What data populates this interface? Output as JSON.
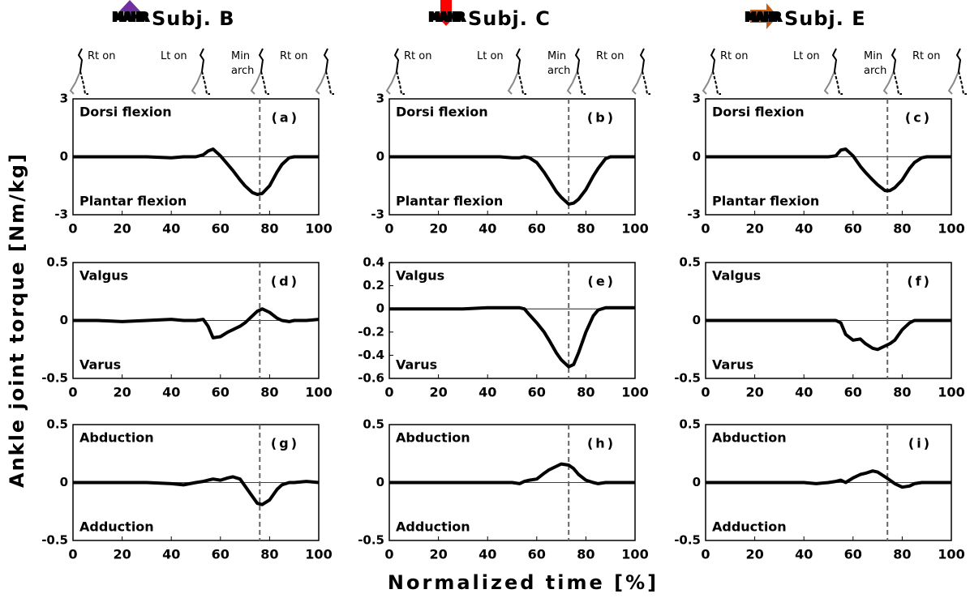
{
  "figure": {
    "ylabel": "Ankle joint torque [Nm/kg]",
    "xlabel": "Normalized time [%]"
  },
  "columns": [
    {
      "icon_text": "MAHR",
      "icon_color": "#7030a0",
      "title": "Subj. B",
      "events": [
        "Rt on",
        "Lt on",
        "Min arch",
        "Rt on"
      ]
    },
    {
      "icon_text": "MAHR",
      "icon_color": "#ff0000",
      "title": "Subj. C",
      "events": [
        "Rt on",
        "Lt on",
        "Min arch",
        "Rt on"
      ]
    },
    {
      "icon_text": "MAHR",
      "icon_color": "#c55a11",
      "title": "Subj. E",
      "events": [
        "Rt on",
        "Lt on",
        "Min arch",
        "Rt on"
      ]
    }
  ],
  "chart_data": [
    {
      "type": "line",
      "panel_label": "(a)",
      "upper_label": "Dorsi flexion",
      "lower_label": "Plantar flexion",
      "xlim": [
        0,
        100
      ],
      "xticks": [
        0,
        20,
        40,
        60,
        80,
        100
      ],
      "ylim": [
        -3,
        3
      ],
      "yticks": [
        -3,
        0,
        3
      ],
      "event_line": 76,
      "color": "#000000",
      "x": [
        0,
        10,
        20,
        30,
        40,
        45,
        50,
        53,
        55,
        57,
        60,
        63,
        65,
        68,
        70,
        73,
        75,
        77,
        80,
        83,
        85,
        88,
        90,
        95,
        100
      ],
      "values": [
        0,
        0,
        0,
        0,
        -0.05,
        0,
        0,
        0.1,
        0.3,
        0.4,
        0.05,
        -0.4,
        -0.7,
        -1.2,
        -1.5,
        -1.85,
        -1.95,
        -1.9,
        -1.5,
        -0.8,
        -0.4,
        -0.05,
        0,
        0,
        0
      ]
    },
    {
      "type": "line",
      "panel_label": "(b)",
      "upper_label": "Dorsi flexion",
      "lower_label": "Plantar flexion",
      "xlim": [
        0,
        100
      ],
      "xticks": [
        0,
        20,
        40,
        60,
        80,
        100
      ],
      "ylim": [
        -3,
        3
      ],
      "yticks": [
        -3,
        0,
        3
      ],
      "event_line": 73,
      "color": "#000000",
      "x": [
        0,
        10,
        20,
        30,
        40,
        45,
        50,
        53,
        55,
        57,
        60,
        63,
        65,
        68,
        70,
        73,
        75,
        77,
        80,
        83,
        85,
        88,
        90,
        95,
        100
      ],
      "values": [
        0,
        0,
        0,
        0,
        0,
        0,
        -0.05,
        -0.05,
        0,
        -0.05,
        -0.3,
        -0.8,
        -1.2,
        -1.8,
        -2.1,
        -2.45,
        -2.4,
        -2.2,
        -1.7,
        -1.0,
        -0.6,
        -0.1,
        0,
        0,
        0
      ]
    },
    {
      "type": "line",
      "panel_label": "(c)",
      "upper_label": "Dorsi flexion",
      "lower_label": "Plantar flexion",
      "xlim": [
        0,
        100
      ],
      "xticks": [
        0,
        20,
        40,
        60,
        80,
        100
      ],
      "ylim": [
        -3,
        3
      ],
      "yticks": [
        -3,
        0,
        3
      ],
      "event_line": 74,
      "color": "#000000",
      "x": [
        0,
        10,
        20,
        30,
        40,
        45,
        50,
        53,
        55,
        57,
        60,
        63,
        65,
        68,
        70,
        73,
        75,
        77,
        80,
        83,
        85,
        88,
        90,
        95,
        100
      ],
      "values": [
        0,
        0,
        0,
        0,
        0,
        0,
        0,
        0.05,
        0.35,
        0.4,
        0.05,
        -0.5,
        -0.8,
        -1.2,
        -1.45,
        -1.75,
        -1.75,
        -1.6,
        -1.2,
        -0.6,
        -0.3,
        -0.05,
        0,
        0,
        0
      ]
    },
    {
      "type": "line",
      "panel_label": "(d)",
      "upper_label": "Valgus",
      "lower_label": "Varus",
      "xlim": [
        0,
        100
      ],
      "xticks": [
        0,
        20,
        40,
        60,
        80,
        100
      ],
      "ylim": [
        -0.5,
        0.5
      ],
      "yticks": [
        -0.5,
        0,
        0.5
      ],
      "event_line": 76,
      "color": "#000000",
      "x": [
        0,
        10,
        20,
        30,
        40,
        45,
        50,
        53,
        55,
        57,
        60,
        63,
        65,
        68,
        70,
        73,
        75,
        77,
        80,
        83,
        85,
        88,
        90,
        95,
        100
      ],
      "values": [
        0,
        0,
        -0.01,
        0,
        0.01,
        0,
        0,
        0.01,
        -0.05,
        -0.15,
        -0.14,
        -0.1,
        -0.08,
        -0.05,
        -0.02,
        0.04,
        0.08,
        0.1,
        0.07,
        0.02,
        0,
        -0.01,
        0,
        0,
        0.01
      ]
    },
    {
      "type": "line",
      "panel_label": "(e)",
      "upper_label": "Valgus",
      "lower_label": "Varus",
      "xlim": [
        0,
        100
      ],
      "xticks": [
        0,
        20,
        40,
        60,
        80,
        100
      ],
      "ylim": [
        -0.6,
        0.4
      ],
      "yticks": [
        -0.6,
        -0.4,
        -0.2,
        0,
        0.2,
        0.4
      ],
      "event_line": 73,
      "color": "#000000",
      "x": [
        0,
        10,
        20,
        30,
        40,
        45,
        50,
        53,
        55,
        57,
        60,
        63,
        65,
        68,
        70,
        73,
        75,
        77,
        80,
        83,
        85,
        88,
        90,
        95,
        100
      ],
      "values": [
        0,
        0,
        0,
        0,
        0.01,
        0.01,
        0.01,
        0.01,
        0,
        -0.05,
        -0.12,
        -0.2,
        -0.27,
        -0.38,
        -0.44,
        -0.5,
        -0.48,
        -0.38,
        -0.2,
        -0.06,
        -0.01,
        0.01,
        0.01,
        0.01,
        0.01
      ]
    },
    {
      "type": "line",
      "panel_label": "(f)",
      "upper_label": "Valgus",
      "lower_label": "Varus",
      "xlim": [
        0,
        100
      ],
      "xticks": [
        0,
        20,
        40,
        60,
        80,
        100
      ],
      "ylim": [
        -0.5,
        0.5
      ],
      "yticks": [
        -0.5,
        0,
        0.5
      ],
      "event_line": 74,
      "color": "#000000",
      "x": [
        0,
        10,
        20,
        30,
        40,
        45,
        50,
        53,
        55,
        57,
        60,
        63,
        65,
        68,
        70,
        73,
        75,
        77,
        80,
        83,
        85,
        88,
        90,
        95,
        100
      ],
      "values": [
        0,
        0,
        0,
        0,
        0,
        0,
        0,
        0,
        -0.02,
        -0.12,
        -0.17,
        -0.16,
        -0.2,
        -0.24,
        -0.25,
        -0.22,
        -0.2,
        -0.17,
        -0.08,
        -0.02,
        0,
        0,
        0,
        0,
        0
      ]
    },
    {
      "type": "line",
      "panel_label": "(g)",
      "upper_label": "Abduction",
      "lower_label": "Adduction",
      "xlim": [
        0,
        100
      ],
      "xticks": [
        0,
        20,
        40,
        60,
        80,
        100
      ],
      "ylim": [
        -0.5,
        0.5
      ],
      "yticks": [
        -0.5,
        0,
        0.5
      ],
      "event_line": 76,
      "color": "#000000",
      "x": [
        0,
        10,
        20,
        30,
        40,
        45,
        50,
        53,
        55,
        57,
        60,
        63,
        65,
        68,
        70,
        73,
        75,
        77,
        80,
        83,
        85,
        88,
        90,
        95,
        100
      ],
      "values": [
        0,
        0,
        0,
        0,
        -0.01,
        -0.02,
        0,
        0.01,
        0.02,
        0.03,
        0.02,
        0.04,
        0.05,
        0.03,
        -0.03,
        -0.12,
        -0.18,
        -0.19,
        -0.15,
        -0.06,
        -0.02,
        0,
        0,
        0.01,
        0
      ]
    },
    {
      "type": "line",
      "panel_label": "(h)",
      "upper_label": "Abduction",
      "lower_label": "Adduction",
      "xlim": [
        0,
        100
      ],
      "xticks": [
        0,
        20,
        40,
        60,
        80,
        100
      ],
      "ylim": [
        -0.5,
        0.5
      ],
      "yticks": [
        -0.5,
        0,
        0.5
      ],
      "event_line": 73,
      "color": "#000000",
      "x": [
        0,
        10,
        20,
        30,
        40,
        45,
        50,
        53,
        55,
        57,
        60,
        63,
        65,
        68,
        70,
        73,
        75,
        77,
        80,
        83,
        85,
        88,
        90,
        95,
        100
      ],
      "values": [
        0,
        0,
        0,
        0,
        0,
        0,
        0,
        -0.01,
        0.01,
        0.02,
        0.03,
        0.08,
        0.11,
        0.14,
        0.16,
        0.15,
        0.12,
        0.07,
        0.02,
        0,
        -0.01,
        0,
        0,
        0,
        0
      ]
    },
    {
      "type": "line",
      "panel_label": "(i)",
      "upper_label": "Abduction",
      "lower_label": "Adduction",
      "xlim": [
        0,
        100
      ],
      "xticks": [
        0,
        20,
        40,
        60,
        80,
        100
      ],
      "ylim": [
        -0.5,
        0.5
      ],
      "yticks": [
        -0.5,
        0,
        0.5
      ],
      "event_line": 74,
      "color": "#000000",
      "x": [
        0,
        10,
        20,
        30,
        40,
        45,
        50,
        53,
        55,
        57,
        60,
        63,
        65,
        68,
        70,
        73,
        75,
        77,
        80,
        83,
        85,
        88,
        90,
        95,
        100
      ],
      "values": [
        0,
        0,
        0,
        0,
        0,
        -0.01,
        0,
        0.01,
        0.02,
        0,
        0.04,
        0.07,
        0.08,
        0.1,
        0.09,
        0.05,
        0.02,
        -0.01,
        -0.04,
        -0.03,
        -0.01,
        0,
        0,
        0,
        0
      ]
    }
  ]
}
